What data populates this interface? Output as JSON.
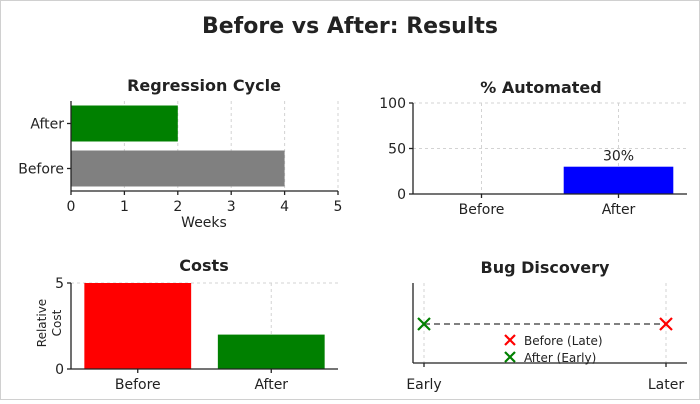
{
  "figure": {
    "title": "Before vs After: Results"
  },
  "chart_data": [
    {
      "id": "regression",
      "type": "bar",
      "orientation": "horizontal",
      "title": "Regression Cycle",
      "xlabel": "Weeks",
      "ylabel": "",
      "categories": [
        "Before",
        "After"
      ],
      "values": [
        4,
        2
      ],
      "colors": [
        "#808080",
        "#008000"
      ],
      "xlim": [
        0,
        5
      ],
      "xticks": [
        0,
        1,
        2,
        3,
        4,
        5
      ],
      "grid": true
    },
    {
      "id": "automated",
      "type": "bar",
      "title": "% Automated",
      "xlabel": "",
      "ylabel": "",
      "categories": [
        "Before",
        "After"
      ],
      "values": [
        0,
        30
      ],
      "value_labels": [
        "",
        "30%"
      ],
      "colors": [
        "#0000ff",
        "#0000ff"
      ],
      "ylim": [
        0,
        100
      ],
      "yticks": [
        0,
        50,
        100
      ],
      "grid": true
    },
    {
      "id": "costs",
      "type": "bar",
      "title": "Costs",
      "xlabel": "",
      "ylabel": "Relative Cost",
      "categories": [
        "Before",
        "After"
      ],
      "values": [
        5,
        2
      ],
      "colors": [
        "#ff0000",
        "#008000"
      ],
      "ylim": [
        0,
        5
      ],
      "yticks": [
        0,
        5
      ],
      "grid": true
    },
    {
      "id": "bugs",
      "type": "scatter",
      "title": "Bug Discovery",
      "xlabel": "",
      "ylabel": "",
      "x_categories": [
        "Early",
        "Later"
      ],
      "series": [
        {
          "name": "Before (Late)",
          "x": "Later",
          "y": 1,
          "marker": "x",
          "color": "#ff0000"
        },
        {
          "name": "After (Early)",
          "x": "Early",
          "y": 1,
          "marker": "x",
          "color": "#008000"
        }
      ],
      "connector": {
        "style": "dashed",
        "color": "#808080"
      },
      "legend": "lower-center",
      "grid": true
    }
  ]
}
